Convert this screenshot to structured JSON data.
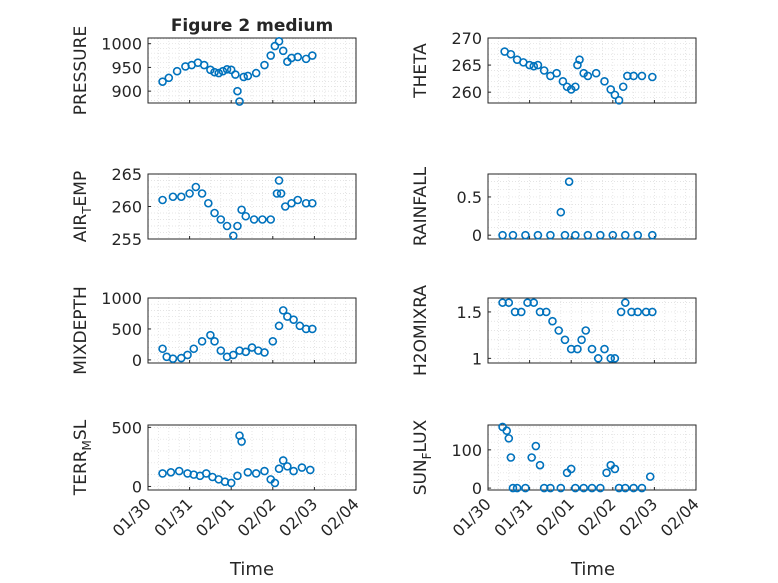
{
  "figure": {
    "title": "Figure 2 medium",
    "xlabel": "Time"
  },
  "colors": {
    "marker": "#0072BD",
    "axis": "#262626",
    "grid": "#DCDCDC",
    "background": "#FFFFFF"
  },
  "chart_data": [
    {
      "type": "scatter",
      "ylabel": "PRESSURE",
      "yticks": [
        "900",
        "950",
        "1000"
      ],
      "ylim": [
        875,
        1012
      ],
      "xlim": [
        "01/30",
        "02/04"
      ],
      "grid": true,
      "x_days": [
        0.35,
        0.5,
        0.7,
        0.9,
        1.05,
        1.2,
        1.35,
        1.5,
        1.6,
        1.7,
        1.8,
        1.9,
        2.0,
        2.1,
        2.15,
        2.2,
        2.3,
        2.4,
        2.6,
        2.8,
        2.95,
        3.05,
        3.15,
        3.25,
        3.35,
        3.45,
        3.6,
        3.8,
        3.95
      ],
      "values": [
        920,
        928,
        942,
        952,
        955,
        960,
        955,
        945,
        940,
        938,
        942,
        946,
        945,
        935,
        900,
        878,
        930,
        932,
        938,
        955,
        975,
        995,
        1005,
        985,
        962,
        970,
        972,
        968,
        975
      ],
      "series": [
        {
          "name": ""
        }
      ]
    },
    {
      "type": "scatter",
      "ylabel": "THETA",
      "yticks": [
        "260",
        "265",
        "270"
      ],
      "ylim": [
        258,
        270
      ],
      "xlim": [
        "01/30",
        "02/04"
      ],
      "grid": true,
      "x_days": [
        0.4,
        0.55,
        0.7,
        0.85,
        1.0,
        1.1,
        1.2,
        1.35,
        1.5,
        1.65,
        1.8,
        1.9,
        2.0,
        2.1,
        2.15,
        2.2,
        2.3,
        2.4,
        2.6,
        2.8,
        2.95,
        3.05,
        3.15,
        3.25,
        3.35,
        3.5,
        3.7,
        3.95
      ],
      "values": [
        267.5,
        267,
        266,
        265.5,
        265,
        264.8,
        265,
        264,
        263,
        263.5,
        262,
        261,
        260.5,
        261,
        265,
        266,
        263.5,
        263,
        263.5,
        262,
        260.5,
        259.5,
        258.5,
        261,
        263,
        263,
        263,
        262.8
      ],
      "series": [
        {
          "name": ""
        }
      ]
    },
    {
      "type": "scatter",
      "ylabel": "AIR_TEMP",
      "yticks": [
        "255",
        "260",
        "265"
      ],
      "ylim": [
        255,
        265
      ],
      "xlim": [
        "01/30",
        "02/04"
      ],
      "grid": true,
      "x_days": [
        0.35,
        0.6,
        0.8,
        1.0,
        1.15,
        1.3,
        1.45,
        1.6,
        1.75,
        1.9,
        2.05,
        2.15,
        2.25,
        2.35,
        2.55,
        2.75,
        2.95,
        3.1,
        3.15,
        3.2,
        3.3,
        3.45,
        3.6,
        3.8,
        3.95
      ],
      "values": [
        261,
        261.5,
        261.5,
        262,
        263,
        262,
        260.5,
        259,
        258,
        257,
        255.5,
        257,
        259.5,
        258.5,
        258,
        258,
        258,
        262,
        264,
        262,
        260,
        260.5,
        261,
        260.5,
        260.5
      ],
      "series": [
        {
          "name": ""
        }
      ]
    },
    {
      "type": "scatter",
      "ylabel": "RAINFALL",
      "yticks": [
        "0",
        "0.5"
      ],
      "ylim": [
        -0.05,
        0.8
      ],
      "xlim": [
        "01/30",
        "02/04"
      ],
      "grid": true,
      "x_days": [
        0.35,
        0.6,
        0.9,
        1.2,
        1.5,
        1.75,
        1.85,
        1.95,
        2.1,
        2.4,
        2.7,
        3.0,
        3.3,
        3.6,
        3.95
      ],
      "values": [
        0,
        0,
        0,
        0,
        0,
        0.3,
        0,
        0.7,
        0,
        0,
        0,
        0,
        0,
        0,
        0
      ],
      "series": [
        {
          "name": ""
        }
      ]
    },
    {
      "type": "scatter",
      "ylabel": "MIXDEPTH",
      "yticks": [
        "0",
        "500",
        "1000"
      ],
      "ylim": [
        -50,
        1000
      ],
      "xlim": [
        "01/30",
        "02/04"
      ],
      "grid": true,
      "x_days": [
        0.35,
        0.45,
        0.6,
        0.8,
        0.95,
        1.1,
        1.3,
        1.5,
        1.6,
        1.75,
        1.9,
        2.05,
        2.2,
        2.35,
        2.5,
        2.65,
        2.8,
        3.0,
        3.15,
        3.25,
        3.35,
        3.5,
        3.65,
        3.8,
        3.95
      ],
      "values": [
        180,
        50,
        20,
        30,
        80,
        180,
        300,
        400,
        300,
        150,
        50,
        80,
        150,
        130,
        200,
        150,
        120,
        300,
        550,
        800,
        700,
        650,
        550,
        500,
        500
      ],
      "series": [
        {
          "name": ""
        }
      ]
    },
    {
      "type": "scatter",
      "ylabel": "H2OMIXRA",
      "yticks": [
        "1",
        "1.5"
      ],
      "ylim": [
        0.95,
        1.65
      ],
      "xlim": [
        "01/30",
        "02/04"
      ],
      "grid": true,
      "x_days": [
        0.35,
        0.5,
        0.65,
        0.8,
        0.95,
        1.1,
        1.25,
        1.4,
        1.55,
        1.7,
        1.85,
        2.0,
        2.15,
        2.25,
        2.35,
        2.5,
        2.65,
        2.8,
        2.95,
        3.05,
        3.2,
        3.3,
        3.45,
        3.6,
        3.8,
        3.95
      ],
      "values": [
        1.6,
        1.6,
        1.5,
        1.5,
        1.6,
        1.6,
        1.5,
        1.5,
        1.4,
        1.3,
        1.2,
        1.1,
        1.1,
        1.2,
        1.3,
        1.1,
        1.0,
        1.1,
        1.0,
        1.0,
        1.5,
        1.6,
        1.5,
        1.5,
        1.5,
        1.5
      ],
      "series": [
        {
          "name": ""
        }
      ]
    },
    {
      "type": "scatter",
      "ylabel": "TERR_MSL",
      "yticks": [
        "0",
        "500"
      ],
      "ylim": [
        -30,
        520
      ],
      "xlim": [
        "01/30",
        "02/04"
      ],
      "grid": true,
      "x_days": [
        0.35,
        0.55,
        0.75,
        0.95,
        1.1,
        1.25,
        1.4,
        1.55,
        1.7,
        1.85,
        2.0,
        2.15,
        2.2,
        2.25,
        2.4,
        2.6,
        2.8,
        2.95,
        3.05,
        3.15,
        3.25,
        3.35,
        3.5,
        3.7,
        3.9
      ],
      "values": [
        110,
        120,
        130,
        110,
        100,
        90,
        110,
        80,
        60,
        40,
        30,
        90,
        430,
        380,
        120,
        110,
        130,
        60,
        30,
        150,
        220,
        170,
        130,
        160,
        140
      ],
      "series": [
        {
          "name": ""
        }
      ]
    },
    {
      "type": "scatter",
      "ylabel": "SUN_FLUX",
      "yticks": [
        "0",
        "100"
      ],
      "ylim": [
        -5,
        165
      ],
      "xlim": [
        "01/30",
        "02/04"
      ],
      "grid": true,
      "x_days": [
        0.35,
        0.45,
        0.5,
        0.55,
        0.6,
        0.7,
        0.9,
        1.05,
        1.15,
        1.25,
        1.35,
        1.5,
        1.75,
        1.9,
        2.0,
        2.1,
        2.3,
        2.5,
        2.7,
        2.85,
        2.95,
        3.05,
        3.15,
        3.3,
        3.5,
        3.7,
        3.9
      ],
      "values": [
        160,
        150,
        130,
        80,
        0,
        0,
        0,
        80,
        110,
        60,
        0,
        0,
        0,
        40,
        50,
        0,
        0,
        0,
        0,
        40,
        60,
        50,
        0,
        0,
        0,
        0,
        30
      ],
      "series": [
        {
          "name": ""
        }
      ]
    }
  ],
  "xticks": [
    "01/30",
    "01/31",
    "02/01",
    "02/02",
    "02/03",
    "02/04"
  ]
}
